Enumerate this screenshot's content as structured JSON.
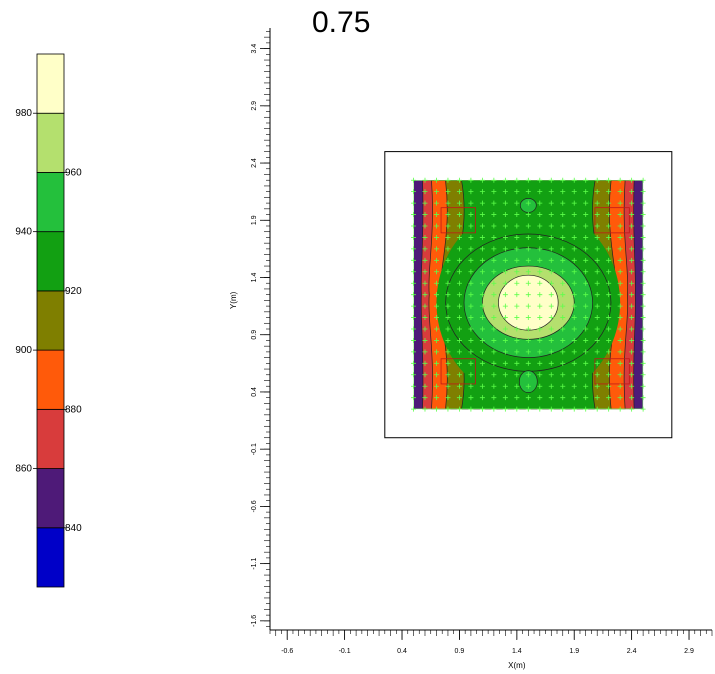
{
  "title": "0.75",
  "chart_data": {
    "type": "heatmap",
    "title": "0.75",
    "xlabel": "X(m)",
    "ylabel": "Y(m)",
    "xlim": [
      -0.75,
      3.1
    ],
    "ylim": [
      -1.68,
      3.58
    ],
    "x_ticks": [
      "-0.6",
      "-0.1",
      "0.4",
      "0.9",
      "1.4",
      "1.9",
      "2.4",
      "2.9"
    ],
    "y_ticks": [
      "-1.6",
      "-1.1",
      "-0.6",
      "-0.1",
      "0.4",
      "0.9",
      "1.4",
      "1.9",
      "2.4",
      "2.9",
      "3.4"
    ],
    "colorbar": {
      "levels": [
        820,
        840,
        860,
        880,
        900,
        920,
        940,
        960,
        980,
        1000
      ],
      "colors": [
        "#0000c8",
        "#4e1a78",
        "#d83c3c",
        "#ff5a0a",
        "#7f7f00",
        "#12a012",
        "#24c03c",
        "#b4e06e",
        "#ffffc8"
      ],
      "labels_left": [
        "980",
        "940",
        "900",
        "860"
      ],
      "labels_right": [
        "960",
        "920",
        "880",
        "840"
      ]
    },
    "slab_outline": {
      "x": [
        0.25,
        2.75
      ],
      "y": [
        0.0,
        2.5
      ]
    },
    "contour_region": {
      "x": [
        0.5,
        2.5
      ],
      "y": [
        0.25,
        2.25
      ]
    },
    "grid_on": false,
    "legend_position": "left"
  }
}
